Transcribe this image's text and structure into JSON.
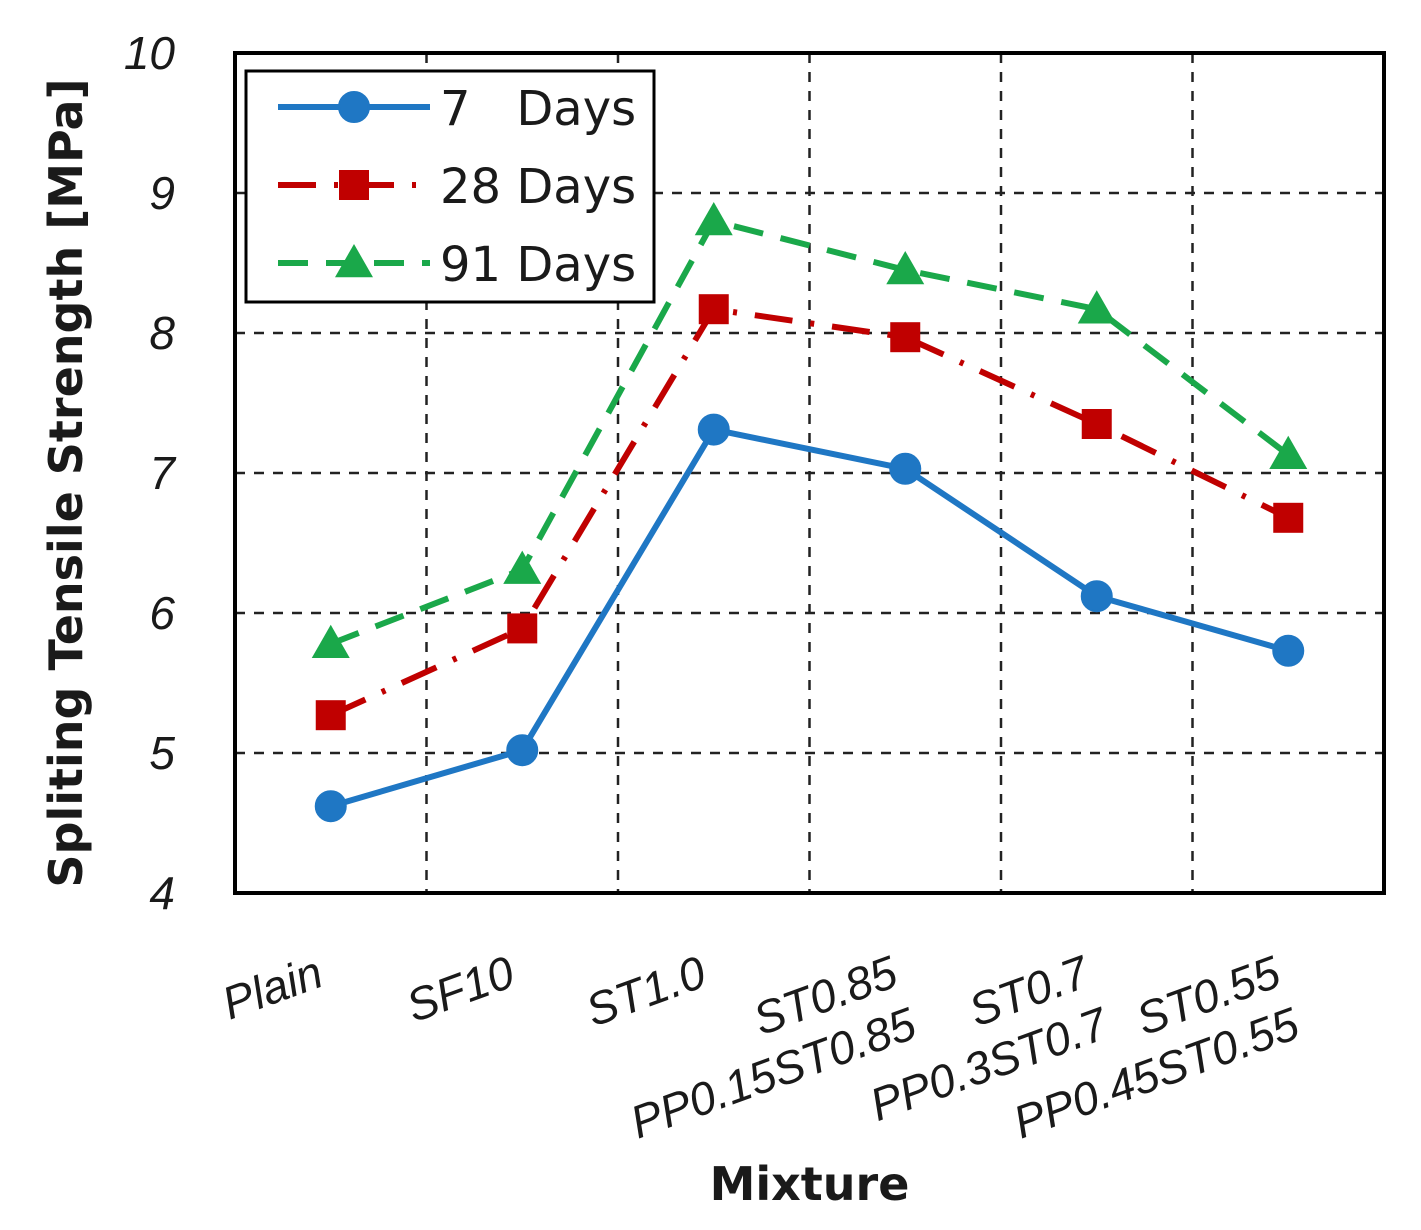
{
  "chart_data": {
    "type": "line",
    "title": "",
    "xlabel": "Mixture",
    "ylabel": "Spliting Tensile Strength [MPa]",
    "ylim": [
      4,
      10
    ],
    "yticks": [
      "4",
      "5",
      "6",
      "7",
      "8",
      "9",
      "10"
    ],
    "grid": true,
    "legend_position": "top-left",
    "categories": [
      "Plain",
      "SF10",
      "ST1.0",
      "PP0.15ST0.85",
      "PP0.3ST0.7",
      "PP0.45ST0.55"
    ],
    "series": [
      {
        "name": "7   Days",
        "color": "#1f77c4",
        "marker": "circle",
        "dash": "solid",
        "values": [
          4.62,
          5.02,
          7.31,
          7.03,
          6.12,
          5.73
        ]
      },
      {
        "name": "28 Days",
        "color": "#c00000",
        "marker": "square",
        "dash": "dashdot",
        "values": [
          5.27,
          5.89,
          8.17,
          7.97,
          7.35,
          6.68
        ]
      },
      {
        "name": "91 Days",
        "color": "#1aa84a",
        "marker": "triangle",
        "dash": "dashed",
        "values": [
          5.78,
          6.31,
          8.8,
          8.45,
          8.17,
          7.13
        ]
      }
    ]
  }
}
